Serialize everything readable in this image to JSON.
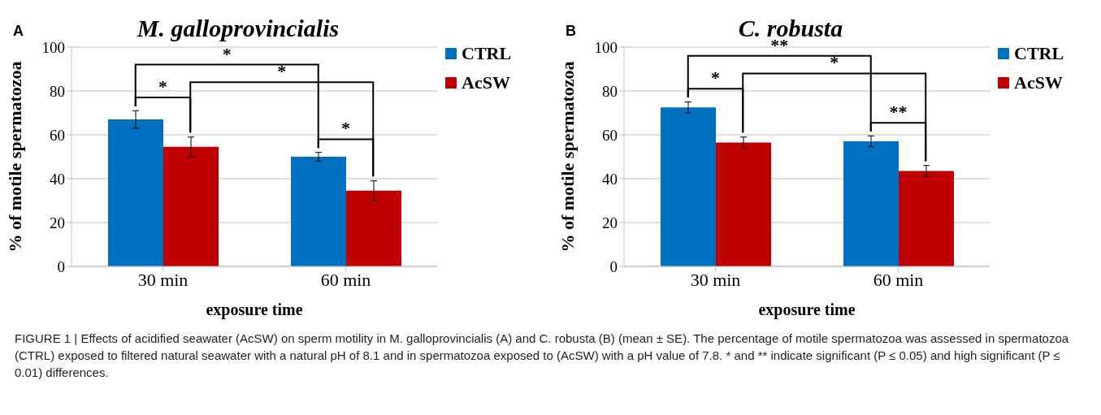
{
  "chart_data": [
    {
      "type": "bar",
      "title": "M. galloprovincialis",
      "xlabel": "exposure time",
      "ylabel": "% of motile spermatozoa",
      "categories": [
        "30 min",
        "60 min"
      ],
      "series": [
        {
          "name": "CTRL",
          "color": "#0070c0",
          "values": [
            67,
            50
          ],
          "errors": [
            4,
            2
          ]
        },
        {
          "name": "AcSW",
          "color": "#c00000",
          "values": [
            54.5,
            34.5
          ],
          "errors": [
            4.5,
            4.5
          ]
        }
      ],
      "ylim": [
        0,
        100
      ],
      "yticks": [
        0,
        20,
        40,
        60,
        80,
        100
      ],
      "grid": "y",
      "legend": "top right",
      "annotations": [
        "A",
        "*",
        "*",
        "*",
        "*",
        "FIGURE 1 | Effects of acidified seawater (AcSW) on sperm motility in M. galloprovincialis (A) and C. robusta (B) (mean ± SE). The percentage of motile spermatozoa was assessed in spermatozoa (CTRL) exposed to filtered natural seawater with a natural pH of 8.1 and in spermatozoa exposed to (AcSW) with a pH value of 7.8. * and ** indicate significant (P ≤ 0.05) and high significant (P ≤ 0.01) differences."
      ]
    },
    {
      "type": "bar",
      "title": "C. robusta",
      "xlabel": "exposure time",
      "ylabel": "% of motile spermatozoa",
      "categories": [
        "30 min",
        "60 min"
      ],
      "series": [
        {
          "name": "CTRL",
          "color": "#0070c0",
          "values": [
            72.5,
            57
          ],
          "errors": [
            2.5,
            2.5
          ]
        },
        {
          "name": "AcSW",
          "color": "#c00000",
          "values": [
            56.5,
            43.5
          ],
          "errors": [
            2.5,
            2.5
          ]
        }
      ],
      "ylim": [
        0,
        100
      ],
      "yticks": [
        0,
        20,
        40,
        60,
        80,
        100
      ],
      "grid": "y",
      "legend": "top right",
      "annotations": [
        "B",
        "**",
        "*",
        "*",
        "**"
      ]
    }
  ]
}
